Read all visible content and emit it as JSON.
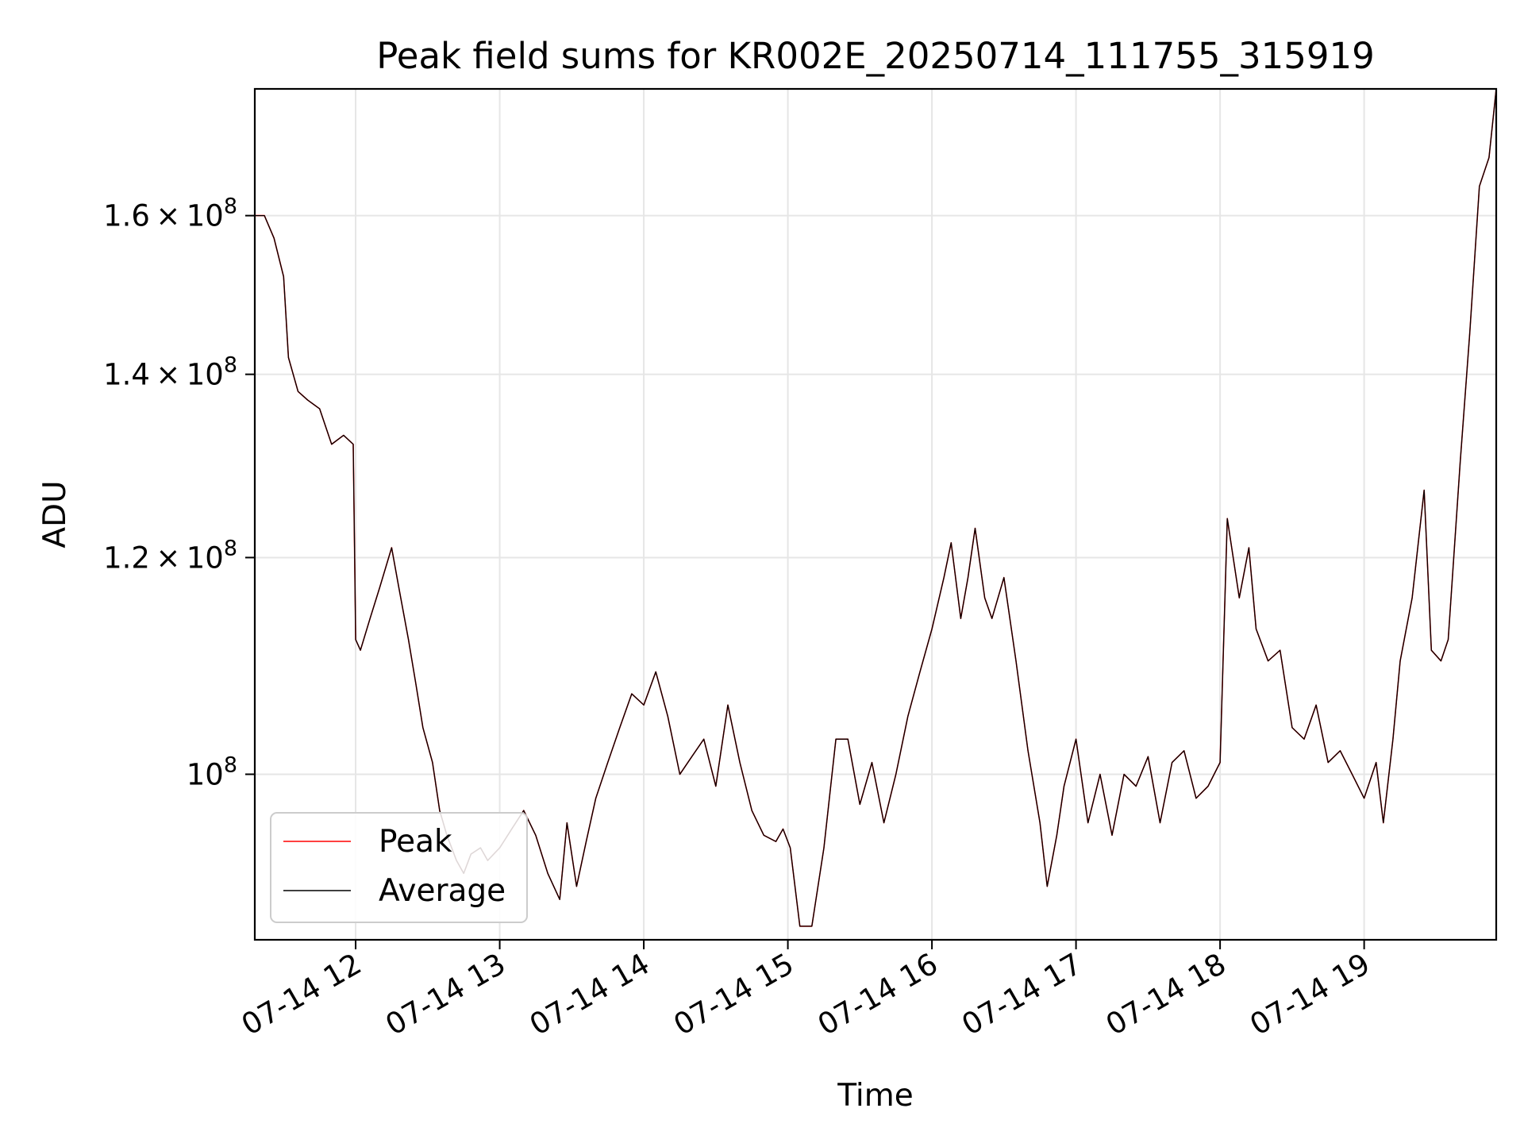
{
  "chart_data": {
    "type": "line",
    "title": "Peak field sums for KR002E_20250714_111755_315919",
    "xlabel": "Time",
    "ylabel": "ADU",
    "y_scale": "log",
    "xlim": [
      "2025-07-14 11:18",
      "2025-07-14 19:55"
    ],
    "ylim": [
      87000000,
      178000000
    ],
    "x_ticks": [
      {
        "value": "2025-07-14 12:00",
        "label": "07-14 12"
      },
      {
        "value": "2025-07-14 13:00",
        "label": "07-14 13"
      },
      {
        "value": "2025-07-14 14:00",
        "label": "07-14 14"
      },
      {
        "value": "2025-07-14 15:00",
        "label": "07-14 15"
      },
      {
        "value": "2025-07-14 16:00",
        "label": "07-14 16"
      },
      {
        "value": "2025-07-14 17:00",
        "label": "07-14 17"
      },
      {
        "value": "2025-07-14 18:00",
        "label": "07-14 18"
      },
      {
        "value": "2025-07-14 19:00",
        "label": "07-14 19"
      }
    ],
    "y_ticks": [
      {
        "value": 100000000,
        "mantissa": "",
        "exponent": "8"
      },
      {
        "value": 120000000,
        "mantissa": "1.2",
        "exponent": "8"
      },
      {
        "value": 140000000,
        "mantissa": "1.4",
        "exponent": "8"
      },
      {
        "value": 160000000,
        "mantissa": "1.6",
        "exponent": "8"
      }
    ],
    "grid": true,
    "legend_position": "bottom-left",
    "x": [
      "2025-07-14 11:18",
      "2025-07-14 11:22",
      "2025-07-14 11:26",
      "2025-07-14 11:30",
      "2025-07-14 11:32",
      "2025-07-14 11:36",
      "2025-07-14 11:40",
      "2025-07-14 11:45",
      "2025-07-14 11:50",
      "2025-07-14 11:55",
      "2025-07-14 11:59",
      "2025-07-14 12:00",
      "2025-07-14 12:02",
      "2025-07-14 12:06",
      "2025-07-14 12:10",
      "2025-07-14 12:15",
      "2025-07-14 12:18",
      "2025-07-14 12:22",
      "2025-07-14 12:25",
      "2025-07-14 12:28",
      "2025-07-14 12:32",
      "2025-07-14 12:35",
      "2025-07-14 12:38",
      "2025-07-14 12:42",
      "2025-07-14 12:45",
      "2025-07-14 12:48",
      "2025-07-14 12:52",
      "2025-07-14 12:55",
      "2025-07-14 13:00",
      "2025-07-14 13:05",
      "2025-07-14 13:10",
      "2025-07-14 13:15",
      "2025-07-14 13:20",
      "2025-07-14 13:25",
      "2025-07-14 13:28",
      "2025-07-14 13:32",
      "2025-07-14 13:36",
      "2025-07-14 13:40",
      "2025-07-14 13:45",
      "2025-07-14 13:50",
      "2025-07-14 13:55",
      "2025-07-14 14:00",
      "2025-07-14 14:05",
      "2025-07-14 14:10",
      "2025-07-14 14:15",
      "2025-07-14 14:20",
      "2025-07-14 14:25",
      "2025-07-14 14:30",
      "2025-07-14 14:35",
      "2025-07-14 14:40",
      "2025-07-14 14:45",
      "2025-07-14 14:50",
      "2025-07-14 14:55",
      "2025-07-14 14:58",
      "2025-07-14 15:01",
      "2025-07-14 15:05",
      "2025-07-14 15:10",
      "2025-07-14 15:15",
      "2025-07-14 15:20",
      "2025-07-14 15:25",
      "2025-07-14 15:30",
      "2025-07-14 15:35",
      "2025-07-14 15:40",
      "2025-07-14 15:45",
      "2025-07-14 15:50",
      "2025-07-14 15:55",
      "2025-07-14 16:00",
      "2025-07-14 16:05",
      "2025-07-14 16:08",
      "2025-07-14 16:12",
      "2025-07-14 16:15",
      "2025-07-14 16:18",
      "2025-07-14 16:22",
      "2025-07-14 16:25",
      "2025-07-14 16:30",
      "2025-07-14 16:35",
      "2025-07-14 16:40",
      "2025-07-14 16:45",
      "2025-07-14 16:48",
      "2025-07-14 16:52",
      "2025-07-14 16:55",
      "2025-07-14 17:00",
      "2025-07-14 17:05",
      "2025-07-14 17:10",
      "2025-07-14 17:15",
      "2025-07-14 17:20",
      "2025-07-14 17:25",
      "2025-07-14 17:30",
      "2025-07-14 17:35",
      "2025-07-14 17:40",
      "2025-07-14 17:45",
      "2025-07-14 17:50",
      "2025-07-14 17:55",
      "2025-07-14 18:00",
      "2025-07-14 18:03",
      "2025-07-14 18:08",
      "2025-07-14 18:12",
      "2025-07-14 18:15",
      "2025-07-14 18:20",
      "2025-07-14 18:25",
      "2025-07-14 18:30",
      "2025-07-14 18:35",
      "2025-07-14 18:40",
      "2025-07-14 18:45",
      "2025-07-14 18:50",
      "2025-07-14 18:55",
      "2025-07-14 19:00",
      "2025-07-14 19:05",
      "2025-07-14 19:08",
      "2025-07-14 19:12",
      "2025-07-14 19:15",
      "2025-07-14 19:20",
      "2025-07-14 19:25",
      "2025-07-14 19:28",
      "2025-07-14 19:32",
      "2025-07-14 19:35",
      "2025-07-14 19:40",
      "2025-07-14 19:44",
      "2025-07-14 19:48",
      "2025-07-14 19:52",
      "2025-07-14 19:55"
    ],
    "series": [
      {
        "name": "Peak",
        "color": "#ff0000",
        "values": [
          160000000,
          160000000,
          157000000,
          152000000,
          142000000,
          138000000,
          137000000,
          136000000,
          132000000,
          133000000,
          132000000,
          112000000,
          111000000,
          114000000,
          117000000,
          121000000,
          117000000,
          112000000,
          108000000,
          104000000,
          101000000,
          97000000,
          95000000,
          93000000,
          92000000,
          93500000,
          94000000,
          93000000,
          94000000,
          95500000,
          97000000,
          95000000,
          92000000,
          90000000,
          96000000,
          91000000,
          94500000,
          98000000,
          101000000,
          104000000,
          107000000,
          106000000,
          109000000,
          105000000,
          100000000,
          101500000,
          103000000,
          99000000,
          106000000,
          101000000,
          97000000,
          95000000,
          94500000,
          95500000,
          94000000,
          88000000,
          88000000,
          94000000,
          103000000,
          103000000,
          97500000,
          101000000,
          96000000,
          100000000,
          105000000,
          109000000,
          113000000,
          118000000,
          121500000,
          114000000,
          118000000,
          123000000,
          116000000,
          114000000,
          118000000,
          110000000,
          102000000,
          96000000,
          91000000,
          95000000,
          99000000,
          103000000,
          96000000,
          100000000,
          95000000,
          100000000,
          99000000,
          101500000,
          96000000,
          101000000,
          102000000,
          98000000,
          99000000,
          101000000,
          124000000,
          116000000,
          121000000,
          113000000,
          110000000,
          111000000,
          104000000,
          103000000,
          106000000,
          101000000,
          102000000,
          100000000,
          98000000,
          101000000,
          96000000,
          103000000,
          110000000,
          116000000,
          127000000,
          111000000,
          110000000,
          112000000,
          130000000,
          145000000,
          164000000,
          168000000,
          178000000
        ]
      },
      {
        "name": "Average",
        "color": "#000000",
        "values": [
          160000000,
          160000000,
          157000000,
          152000000,
          142000000,
          138000000,
          137000000,
          136000000,
          132000000,
          133000000,
          132000000,
          112000000,
          111000000,
          114000000,
          117000000,
          121000000,
          117000000,
          112000000,
          108000000,
          104000000,
          101000000,
          97000000,
          95000000,
          93000000,
          92000000,
          93500000,
          94000000,
          93000000,
          94000000,
          95500000,
          97000000,
          95000000,
          92000000,
          90000000,
          96000000,
          91000000,
          94500000,
          98000000,
          101000000,
          104000000,
          107000000,
          106000000,
          109000000,
          105000000,
          100000000,
          101500000,
          103000000,
          99000000,
          106000000,
          101000000,
          97000000,
          95000000,
          94500000,
          95500000,
          94000000,
          88000000,
          88000000,
          94000000,
          103000000,
          103000000,
          97500000,
          101000000,
          96000000,
          100000000,
          105000000,
          109000000,
          113000000,
          118000000,
          121500000,
          114000000,
          118000000,
          123000000,
          116000000,
          114000000,
          118000000,
          110000000,
          102000000,
          96000000,
          91000000,
          95000000,
          99000000,
          103000000,
          96000000,
          100000000,
          95000000,
          100000000,
          99000000,
          101500000,
          96000000,
          101000000,
          102000000,
          98000000,
          99000000,
          101000000,
          124000000,
          116000000,
          121000000,
          113000000,
          110000000,
          111000000,
          104000000,
          103000000,
          106000000,
          101000000,
          102000000,
          100000000,
          98000000,
          101000000,
          96000000,
          103000000,
          110000000,
          116000000,
          127000000,
          111000000,
          110000000,
          112000000,
          130000000,
          145000000,
          164000000,
          168000000,
          178000000
        ]
      }
    ]
  }
}
